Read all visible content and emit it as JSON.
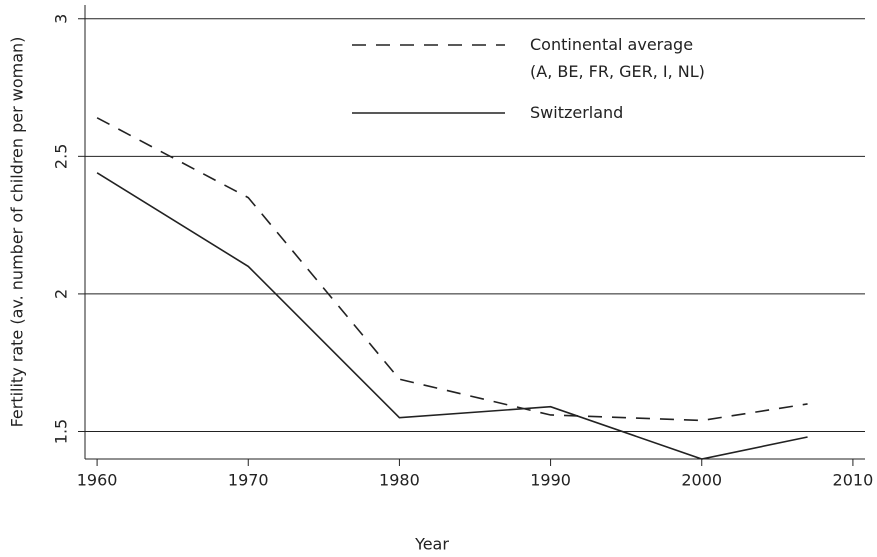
{
  "chart_data": {
    "type": "line",
    "x_label": "Year",
    "y_label": "Fertility rate (av. number of children per woman)",
    "x": [
      1960,
      1970,
      1980,
      1990,
      2000,
      2007
    ],
    "series": [
      {
        "name": "Continental average\n(A, BE, FR, GER, I, NL)",
        "color": "#222222",
        "dash": "dashed",
        "values": [
          2.64,
          2.35,
          1.69,
          1.56,
          1.54,
          1.6
        ]
      },
      {
        "name": "Switzerland",
        "color": "#222222",
        "dash": "solid",
        "values": [
          2.44,
          2.1,
          1.55,
          1.59,
          1.4,
          1.48
        ]
      }
    ],
    "xlim": [
      1959.2,
      2010.8
    ],
    "xticks": [
      1960,
      1970,
      1980,
      1990,
      2000,
      2010
    ],
    "ylim": [
      1.4,
      3.05
    ],
    "yticks": [
      1.5,
      2,
      2.5,
      3
    ],
    "grid": true,
    "legend": "top"
  }
}
